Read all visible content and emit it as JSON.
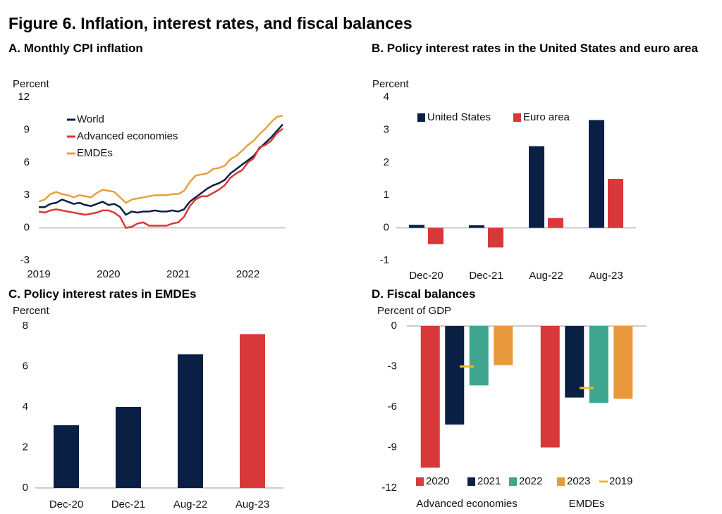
{
  "title": "Figure 6. Inflation, interest rates, and fiscal balances",
  "chart_data": [
    {
      "type": "line",
      "title": "A. Monthly CPI inflation",
      "y_label": "Percent",
      "categories": [
        "2019",
        null,
        null,
        null,
        null,
        null,
        null,
        null,
        null,
        null,
        null,
        null,
        "2020",
        null,
        null,
        null,
        null,
        null,
        null,
        null,
        null,
        null,
        null,
        null,
        "2021",
        null,
        null,
        null,
        null,
        null,
        null,
        null,
        null,
        null,
        null,
        null,
        "2022",
        null,
        null,
        null,
        null,
        null,
        null
      ],
      "series": [
        {
          "name": "World",
          "color": "#0a1f44",
          "values": [
            1.9,
            1.9,
            2.2,
            2.3,
            2.6,
            2.4,
            2.2,
            2.3,
            2.1,
            2.0,
            2.2,
            2.4,
            2.1,
            2.2,
            1.9,
            1.2,
            1.5,
            1.4,
            1.5,
            1.5,
            1.6,
            1.5,
            1.5,
            1.6,
            1.5,
            1.7,
            2.4,
            2.8,
            3.2,
            3.6,
            3.9,
            4.1,
            4.4,
            5.0,
            5.4,
            5.8,
            6.2,
            6.6,
            7.3,
            7.8,
            8.3,
            8.9,
            9.5
          ]
        },
        {
          "name": "Advanced economies",
          "color": "#d9383a",
          "values": [
            1.5,
            1.4,
            1.6,
            1.7,
            1.6,
            1.5,
            1.4,
            1.3,
            1.2,
            1.3,
            1.4,
            1.6,
            1.6,
            1.4,
            1.0,
            0.0,
            0.1,
            0.4,
            0.5,
            0.2,
            0.2,
            0.2,
            0.2,
            0.4,
            0.5,
            1.0,
            2.0,
            2.6,
            2.9,
            2.9,
            3.2,
            3.5,
            3.9,
            4.6,
            5.0,
            5.3,
            6.0,
            6.4,
            7.4,
            7.6,
            8.0,
            8.7,
            9.1
          ]
        },
        {
          "name": "EMDEs",
          "color": "#e8a040",
          "values": [
            2.4,
            2.6,
            3.1,
            3.3,
            3.1,
            3.0,
            2.8,
            3.0,
            2.9,
            2.8,
            3.2,
            3.5,
            3.4,
            3.3,
            2.8,
            2.3,
            2.6,
            2.7,
            2.8,
            2.9,
            3.0,
            3.0,
            3.0,
            3.1,
            3.1,
            3.4,
            4.2,
            4.8,
            4.9,
            5.0,
            5.4,
            5.5,
            5.7,
            6.3,
            6.6,
            7.1,
            7.6,
            8.0,
            8.6,
            9.1,
            9.7,
            10.2,
            10.3
          ]
        }
      ],
      "ylim": [
        -3,
        12
      ],
      "yticks": [
        -3,
        0,
        3,
        6,
        9,
        12
      ]
    },
    {
      "type": "bar",
      "title": "B. Policy interest rates in the United States and euro area",
      "y_label": "Percent",
      "categories": [
        "Dec-20",
        "Dec-21",
        "Aug-22",
        "Aug-23"
      ],
      "series": [
        {
          "name": "United States",
          "color": "#0a1f44",
          "values": [
            0.09,
            0.08,
            2.5,
            3.3
          ]
        },
        {
          "name": "Euro area",
          "color": "#d9383a",
          "values": [
            -0.5,
            -0.6,
            0.3,
            1.5
          ]
        }
      ],
      "ylim": [
        -1,
        4
      ],
      "yticks": [
        -1,
        0,
        1,
        2,
        3,
        4
      ]
    },
    {
      "type": "bar",
      "title": "C. Policy interest rates in EMDEs",
      "y_label": "Percent",
      "categories": [
        "Dec-20",
        "Dec-21",
        "Aug-22",
        "Aug-23"
      ],
      "values": [
        3.1,
        4.0,
        6.6,
        7.6
      ],
      "colors": [
        "#0a1f44",
        "#0a1f44",
        "#0a1f44",
        "#d9383a"
      ],
      "ylim": [
        0,
        8
      ],
      "yticks": [
        0,
        2,
        4,
        6,
        8
      ]
    },
    {
      "type": "bar",
      "title": "D. Fiscal balances",
      "y_label": "Percent of GDP",
      "categories": [
        "Advanced economies",
        "EMDEs"
      ],
      "series": [
        {
          "name": "2020",
          "color": "#d9383a",
          "values": [
            -10.5,
            -9.0
          ]
        },
        {
          "name": "2021",
          "color": "#0a1f44",
          "values": [
            -7.3,
            -5.3
          ]
        },
        {
          "name": "2022",
          "color": "#3fa58f",
          "values": [
            -4.4,
            -5.7
          ]
        },
        {
          "name": "2023",
          "color": "#e8993e",
          "values": [
            -2.9,
            -5.4
          ]
        },
        {
          "name": "2019",
          "color": "#f2b820",
          "type": "marker",
          "values": [
            -3.0,
            -4.6
          ]
        }
      ],
      "ylim": [
        -12,
        0
      ],
      "yticks": [
        -12,
        -9,
        -6,
        -3,
        0
      ]
    }
  ]
}
